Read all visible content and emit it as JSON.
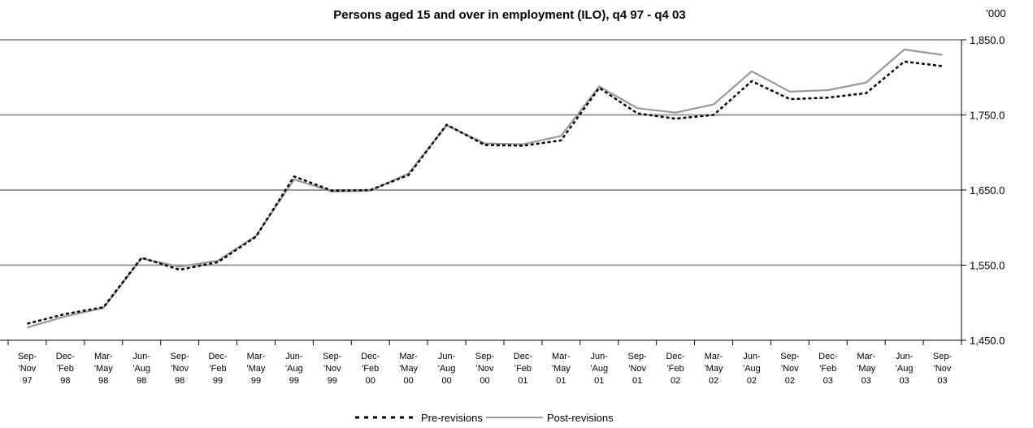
{
  "chart_data": {
    "type": "line",
    "title": "Persons aged 15 and over in employment (ILO), q4 97 - q4 03",
    "unit_label": "’000",
    "xlabel": "",
    "ylabel": "",
    "ylim": [
      1450,
      1850
    ],
    "y_ticks": [
      "1,850.0",
      "1,750.0",
      "1,650.0",
      "1,550.0",
      "1,450.0"
    ],
    "grid": true,
    "legend_position": "bottom",
    "categories": [
      [
        "Sep-",
        "'Nov",
        "97"
      ],
      [
        "Dec-",
        "'Feb",
        "98"
      ],
      [
        "Mar-",
        "'May",
        "98"
      ],
      [
        "Jun-",
        "'Aug",
        "98"
      ],
      [
        "Sep-",
        "'Nov",
        "98"
      ],
      [
        "Dec-",
        "'Feb",
        "99"
      ],
      [
        "Mar-",
        "'May",
        "99"
      ],
      [
        "Jun-",
        "'Aug",
        "99"
      ],
      [
        "Sep-",
        "'Nov",
        "99"
      ],
      [
        "Dec-",
        "'Feb",
        "00"
      ],
      [
        "Mar-",
        "'May",
        "00"
      ],
      [
        "Jun-",
        "'Aug",
        "00"
      ],
      [
        "Sep-",
        "'Nov",
        "00"
      ],
      [
        "Dec-",
        "'Feb",
        "01"
      ],
      [
        "Mar-",
        "'May",
        "01"
      ],
      [
        "Jun-",
        "'Aug",
        "01"
      ],
      [
        "Sep-",
        "'Nov",
        "01"
      ],
      [
        "Dec-",
        "'Feb",
        "02"
      ],
      [
        "Mar-",
        "'May",
        "02"
      ],
      [
        "Jun-",
        "'Aug",
        "02"
      ],
      [
        "Sep-",
        "'Nov",
        "02"
      ],
      [
        "Dec-",
        "'Feb",
        "03"
      ],
      [
        "Mar-",
        "'May",
        "03"
      ],
      [
        "Jun-",
        "'Aug",
        "03"
      ],
      [
        "Sep-",
        "'Nov",
        "03"
      ]
    ],
    "series": [
      {
        "name": "Pre-revisions",
        "style": "dotted",
        "color": "#000000",
        "values": [
          1472,
          1485,
          1494,
          1560,
          1544,
          1554,
          1588,
          1668,
          1649,
          1650,
          1670,
          1737,
          1710,
          1709,
          1716,
          1786,
          1752,
          1745,
          1750,
          1795,
          1771,
          1773,
          1779,
          1821,
          1815
        ]
      },
      {
        "name": "Post-revisions",
        "style": "solid",
        "color": "#999999",
        "values": [
          1467,
          1482,
          1493,
          1559,
          1548,
          1556,
          1589,
          1664,
          1648,
          1649,
          1672,
          1736,
          1712,
          1711,
          1722,
          1788,
          1759,
          1753,
          1764,
          1808,
          1781,
          1783,
          1793,
          1837,
          1830
        ]
      }
    ]
  }
}
